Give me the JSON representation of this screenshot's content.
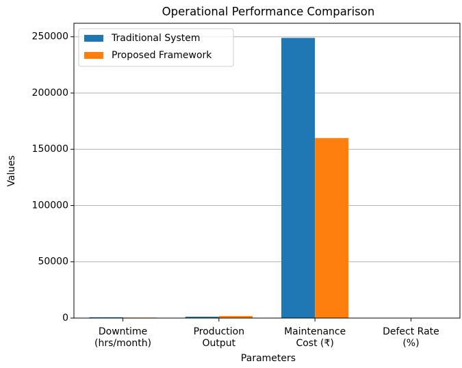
{
  "chart_data": {
    "type": "bar",
    "title": "Operational Performance Comparison",
    "xlabel": "Parameters",
    "ylabel": "Values",
    "categories": [
      [
        "Downtime",
        "(hrs/month)"
      ],
      [
        "Production",
        "Output"
      ],
      [
        "Maintenance",
        "Cost (₹)"
      ],
      [
        "Defect Rate",
        "(%)"
      ]
    ],
    "series": [
      {
        "name": "Traditional System",
        "color": "#1f77b4",
        "values": [
          720,
          1200,
          249000,
          5
        ]
      },
      {
        "name": "Proposed Framework",
        "color": "#ff7f0e",
        "values": [
          450,
          1800,
          160000,
          2
        ]
      }
    ],
    "ylim": [
      0,
      262000
    ],
    "yticks": [
      0,
      50000,
      100000,
      150000,
      200000,
      250000
    ],
    "grid": true,
    "legend": "upper left"
  }
}
